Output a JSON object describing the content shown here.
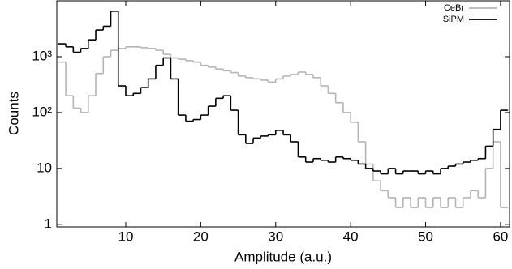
{
  "chart_data": {
    "type": "histogram",
    "x_label": "Amplitude (a.u.)",
    "y_label": "Counts",
    "log_y": true,
    "legend": "top-right",
    "xlim": [
      0.8,
      61.2
    ],
    "xticks": [
      10,
      20,
      30,
      40,
      50,
      60
    ],
    "ylim": [
      0.9,
      10000
    ],
    "yticks": [
      1,
      10,
      {
        "value": 100,
        "label": "10²"
      },
      {
        "value": 1000,
        "label": "10³"
      }
    ],
    "bins": [
      1,
      2,
      3,
      4,
      5,
      6,
      7,
      8,
      9,
      10,
      11,
      12,
      13,
      14,
      15,
      16,
      17,
      18,
      19,
      20,
      21,
      22,
      23,
      24,
      25,
      26,
      27,
      28,
      29,
      30,
      31,
      32,
      33,
      34,
      35,
      36,
      37,
      38,
      39,
      40,
      41,
      42,
      43,
      44,
      45,
      46,
      47,
      48,
      49,
      50,
      51,
      52,
      53,
      54,
      55,
      56,
      57,
      58,
      59,
      60,
      61
    ],
    "series": [
      {
        "name": "CeBr",
        "color": "#b4b4b4",
        "values": [
          800,
          200,
          120,
          100,
          200,
          500,
          1000,
          1300,
          1400,
          1500,
          1500,
          1450,
          1400,
          1300,
          1100,
          950,
          900,
          850,
          800,
          700,
          650,
          600,
          560,
          520,
          450,
          420,
          400,
          380,
          350,
          400,
          450,
          480,
          530,
          480,
          420,
          300,
          220,
          150,
          100,
          67,
          30,
          12,
          6,
          4,
          3,
          2,
          3,
          2,
          3,
          2,
          3,
          2,
          3,
          2,
          3,
          4,
          3,
          10,
          30,
          2
        ]
      },
      {
        "name": "SiPM",
        "color": "#000000",
        "values": [
          1700,
          1500,
          1200,
          1400,
          2000,
          3000,
          3500,
          6500,
          300,
          200,
          220,
          280,
          400,
          700,
          950,
          400,
          90,
          70,
          75,
          90,
          130,
          180,
          200,
          110,
          40,
          28,
          35,
          38,
          40,
          48,
          40,
          30,
          16,
          13,
          15,
          14,
          13,
          16,
          15,
          14,
          12,
          10,
          9,
          8,
          10,
          8,
          9,
          9,
          8,
          9,
          8,
          10,
          11,
          12,
          13,
          14,
          15,
          25,
          50,
          110
        ]
      }
    ]
  }
}
